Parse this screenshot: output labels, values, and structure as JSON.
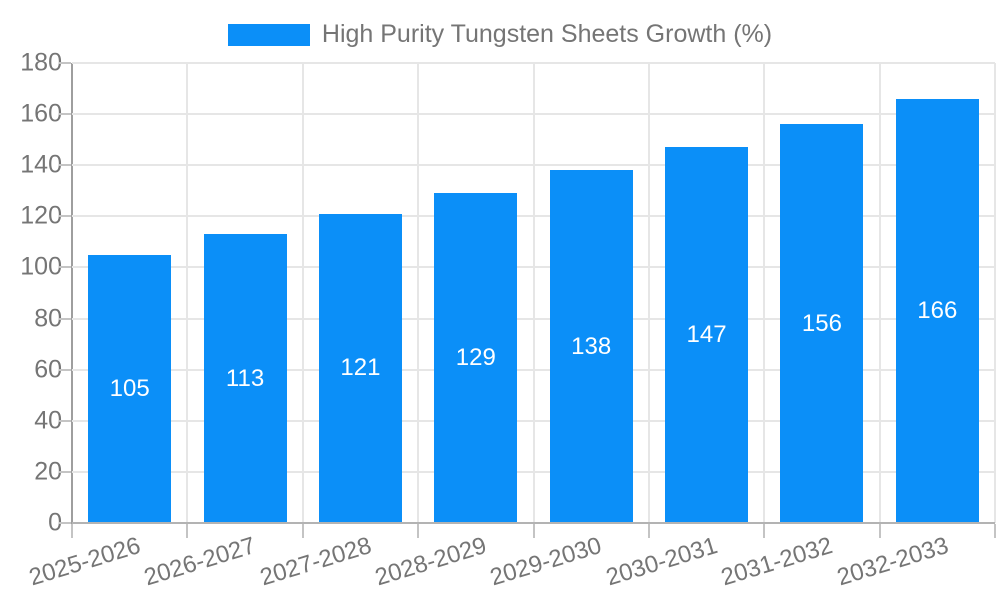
{
  "chart_data": {
    "type": "bar",
    "title": "",
    "categories": [
      "2025-2026",
      "2026-2027",
      "2027-2028",
      "2028-2029",
      "2029-2030",
      "2030-2031",
      "2031-2032",
      "2032-2033"
    ],
    "values": [
      105,
      113,
      121,
      129,
      138,
      147,
      156,
      166
    ],
    "xlabel": "",
    "ylabel": "",
    "ylim": [
      0,
      180
    ],
    "y_tick_step": 20,
    "y_tick_labels": [
      "0",
      "20",
      "40",
      "60",
      "80",
      "100",
      "120",
      "140",
      "160",
      "180"
    ],
    "grid": "both",
    "legend_position": "top-center",
    "bar_label_color": "#ffffff",
    "bar_color": "#0b8ff8"
  },
  "legend": {
    "series_label": "High Purity Tungsten Sheets Growth (%)"
  },
  "colors": {
    "bar": "#0b8ff8",
    "gridline": "#e6e6e6",
    "axis_line": "#9e9e9e",
    "bottom_axis_line": "#b3b3b3",
    "tick": "#c4c4c4",
    "axis_text": "#757575",
    "bar_label_text": "#ffffff",
    "background": "#ffffff"
  }
}
